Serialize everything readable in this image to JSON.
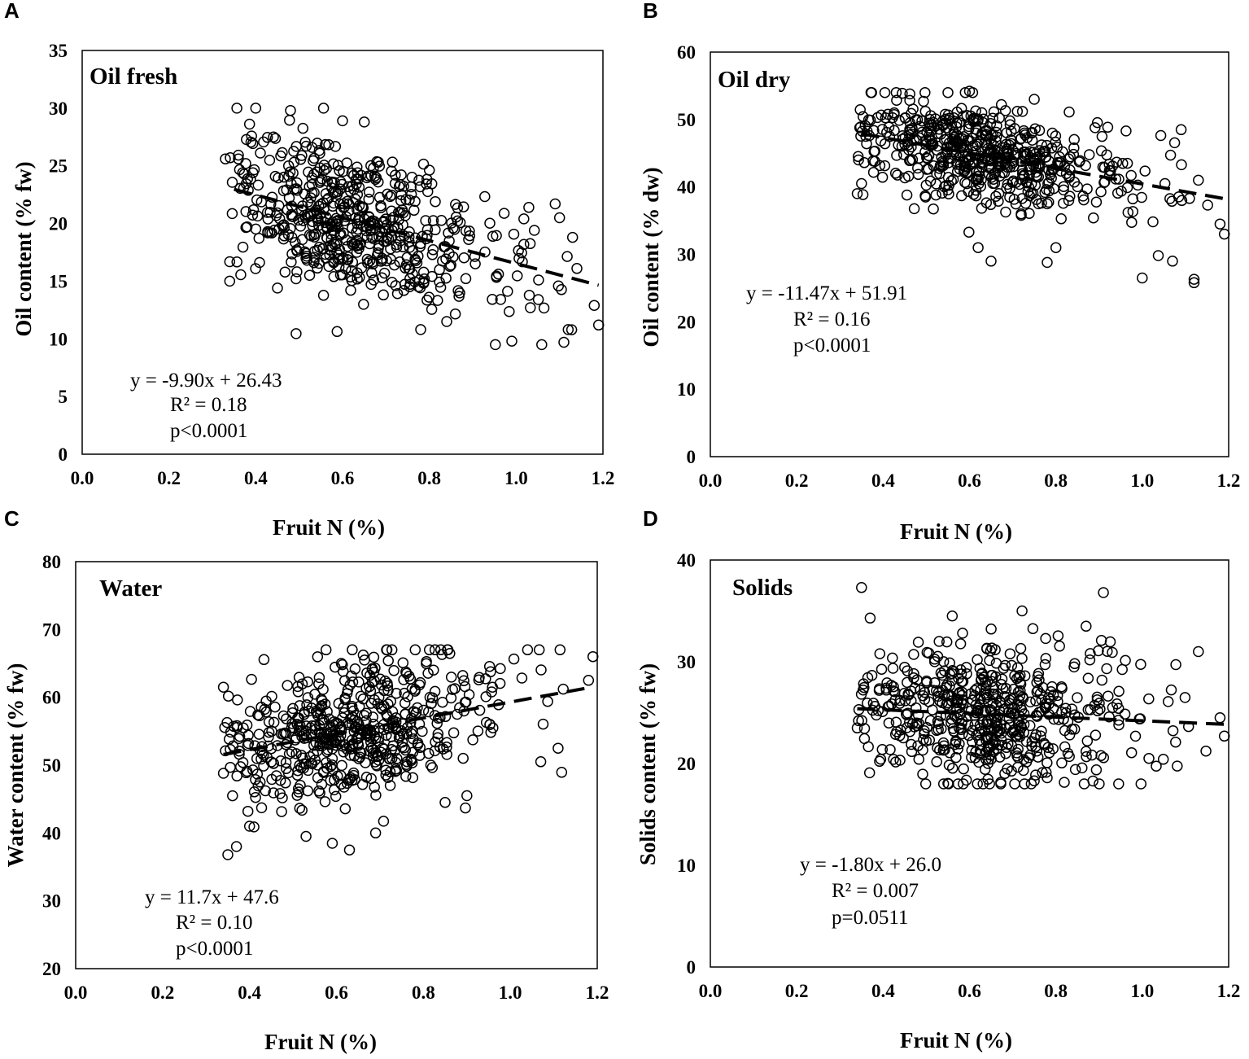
{
  "chart_data": [
    {
      "panel": "A",
      "type": "scatter",
      "title": "Oil fresh",
      "xlabel": "Fruit N (%)",
      "ylabel": "Oil content  (% fw)",
      "xlim": [
        0.0,
        1.2
      ],
      "ylim": [
        0,
        35
      ],
      "xticks": [
        "0.0",
        "0.2",
        "0.4",
        "0.6",
        "0.8",
        "1.0",
        "1.2"
      ],
      "yticks": [
        "0",
        "5",
        "10",
        "15",
        "20",
        "25",
        "30",
        "35"
      ],
      "trend": {
        "slope": -9.9,
        "intercept": 26.43,
        "x_range": [
          0.35,
          1.19
        ]
      },
      "cloud": {
        "n": 560,
        "x_range": [
          0.34,
          1.19
        ],
        "x_peak": 0.62,
        "resid_sd": 3.2,
        "y_min": 9.5,
        "y_max": 30,
        "seed": 11
      },
      "points": [
        [
          0.34,
          15.0
        ],
        [
          0.4,
          30.0
        ],
        [
          0.48,
          29.8
        ],
        [
          0.6,
          28.9
        ],
        [
          0.65,
          28.8
        ],
        [
          0.36,
          25.6
        ],
        [
          0.37,
          24.4
        ],
        [
          0.99,
          9.8
        ],
        [
          1.11,
          9.7
        ],
        [
          1.19,
          11.2
        ],
        [
          1.18,
          12.9
        ],
        [
          1.12,
          10.8
        ],
        [
          1.13,
          18.8
        ],
        [
          1.14,
          16.1
        ],
        [
          1.09,
          21.7
        ],
        [
          1.1,
          20.5
        ],
        [
          0.84,
          11.5
        ],
        [
          0.78,
          10.8
        ],
        [
          0.38,
          19.7
        ],
        [
          0.45,
          14.4
        ],
        [
          0.33,
          25.6
        ]
      ],
      "equation": [
        "y = -9.90x + 26.43",
        "R² = 0.18",
        "p<0.0001"
      ]
    },
    {
      "panel": "B",
      "type": "scatter",
      "title": "Oil dry",
      "xlabel": "Fruit N (%)",
      "ylabel": "Oil content  (% dw)",
      "xlim": [
        0.0,
        1.2
      ],
      "ylim": [
        0,
        60
      ],
      "xticks": [
        "0.0",
        "0.2",
        "0.4",
        "0.6",
        "0.8",
        "1.0",
        "1.2"
      ],
      "yticks": [
        "0",
        "10",
        "20",
        "30",
        "40",
        "50",
        "60"
      ],
      "trend": {
        "slope": -11.47,
        "intercept": 51.91,
        "x_range": [
          0.35,
          1.19
        ]
      },
      "cloud": {
        "n": 560,
        "x_range": [
          0.34,
          1.19
        ],
        "x_peak": 0.64,
        "resid_sd": 3.6,
        "y_min": 26,
        "y_max": 54,
        "seed": 23
      },
      "points": [
        [
          0.34,
          39.0
        ],
        [
          0.35,
          40.5
        ],
        [
          0.6,
          54.2
        ],
        [
          0.55,
          54.0
        ],
        [
          0.75,
          53.0
        ],
        [
          0.65,
          29.0
        ],
        [
          0.62,
          31.0
        ],
        [
          0.78,
          28.8
        ],
        [
          0.8,
          31.0
        ],
        [
          1.0,
          26.5
        ],
        [
          1.12,
          25.8
        ],
        [
          1.12,
          26.3
        ],
        [
          1.19,
          33.0
        ],
        [
          1.18,
          34.5
        ],
        [
          1.07,
          29.0
        ],
        [
          1.09,
          48.5
        ],
        [
          1.13,
          41.0
        ],
        [
          0.36,
          47.5
        ]
      ],
      "equation": [
        "y = -11.47x + 51.91",
        "R² = 0.16",
        "p<0.0001"
      ]
    },
    {
      "panel": "C",
      "type": "scatter",
      "title": "Water",
      "xlabel": "Fruit N (%)",
      "ylabel": "Water content  (% fw)",
      "xlim": [
        0.0,
        1.2
      ],
      "ylim": [
        20,
        80
      ],
      "xticks": [
        "0.0",
        "0.2",
        "0.4",
        "0.6",
        "0.8",
        "1.0",
        "1.2"
      ],
      "yticks": [
        "20",
        "30",
        "40",
        "50",
        "60",
        "70",
        "80"
      ],
      "trend": {
        "slope": 11.7,
        "intercept": 47.6,
        "x_range": [
          0.34,
          1.19
        ]
      },
      "cloud": {
        "n": 560,
        "x_range": [
          0.34,
          1.19
        ],
        "x_peak": 0.64,
        "resid_sd": 5.0,
        "y_min": 37,
        "y_max": 67,
        "seed": 37
      },
      "points": [
        [
          0.34,
          61.5
        ],
        [
          0.35,
          36.8
        ],
        [
          0.37,
          38.0
        ],
        [
          0.4,
          41.0
        ],
        [
          0.63,
          37.5
        ],
        [
          0.84,
          67.0
        ],
        [
          1.19,
          66.0
        ],
        [
          1.18,
          62.5
        ],
        [
          1.07,
          50.5
        ],
        [
          1.11,
          52.5
        ],
        [
          0.9,
          45.5
        ],
        [
          0.85,
          44.5
        ],
        [
          0.69,
          40.0
        ],
        [
          0.53,
          39.5
        ]
      ],
      "equation": [
        "y = 11.7x + 47.6",
        "R² = 0.10",
        "p<0.0001"
      ]
    },
    {
      "panel": "D",
      "type": "scatter",
      "title": "Solids",
      "xlabel": "Fruit N (%)",
      "ylabel": "Solids content  (% fw)",
      "xlim": [
        0.0,
        1.2
      ],
      "ylim": [
        0,
        40
      ],
      "xticks": [
        "0.0",
        "0.2",
        "0.4",
        "0.6",
        "0.8",
        "1.0",
        "1.2"
      ],
      "yticks": [
        "0",
        "10",
        "20",
        "30",
        "40"
      ],
      "trend": {
        "slope": -1.8,
        "intercept": 26.0,
        "x_range": [
          0.34,
          1.19
        ]
      },
      "cloud": {
        "n": 560,
        "x_range": [
          0.34,
          1.19
        ],
        "x_peak": 0.64,
        "resid_sd": 3.3,
        "y_min": 18,
        "y_max": 35,
        "seed": 53
      },
      "points": [
        [
          0.35,
          37.3
        ],
        [
          0.91,
          36.8
        ],
        [
          0.37,
          34.3
        ],
        [
          0.56,
          34.5
        ],
        [
          0.75,
          18.3
        ],
        [
          0.78,
          18.6
        ],
        [
          0.34,
          23.5
        ],
        [
          1.19,
          22.7
        ],
        [
          1.13,
          31.0
        ],
        [
          1.18,
          24.5
        ],
        [
          0.87,
          33.5
        ]
      ],
      "equation": [
        "y = -1.80x + 26.0",
        "R² = 0.007",
        "p=0.0511"
      ]
    }
  ]
}
